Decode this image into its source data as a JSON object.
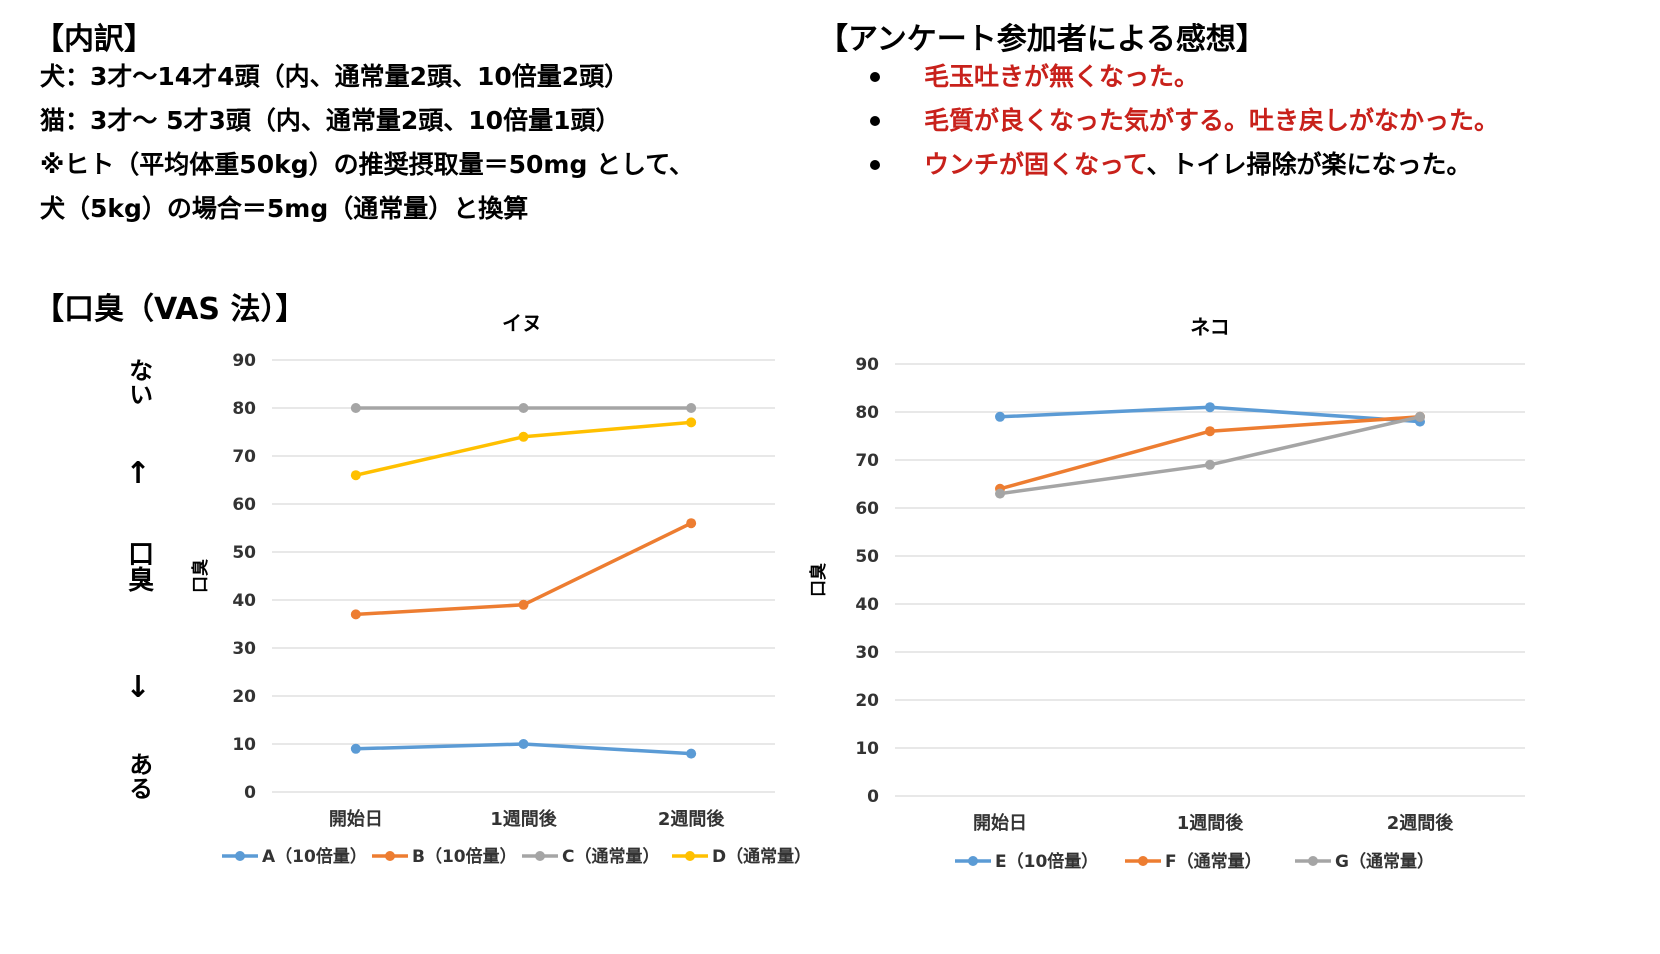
{
  "breakdown": {
    "heading": "【内訳】",
    "lines": [
      "犬：3才～14才4頭（内、通常量2頭、10倍量2頭）",
      "猫：3才～ 5才3頭（内、通常量2頭、10倍量1頭）",
      "※ヒト（平均体重50kg）の推奨摂取量＝50mg として、",
      "犬（5kg）の場合＝5mg（通常量）と換算"
    ]
  },
  "survey": {
    "heading": "【アンケート参加者による感想】",
    "items": [
      {
        "red": "毛玉吐きが無くなった。",
        "rest": ""
      },
      {
        "red": "毛質が良くなった気がする。吐き戻しがなかった。",
        "rest": ""
      },
      {
        "red": "ウンチが固くなって",
        "rest": "、トイレ掃除が楽になった。"
      }
    ]
  },
  "section": {
    "heading": "【口臭（VAS 法）】",
    "side_top": "ない",
    "arrow_up": "↑",
    "side_middle": "口臭",
    "arrow_down": "↓",
    "side_bottom": "ある"
  },
  "colors": {
    "blue": "#5b9bd5",
    "orange": "#ed7d31",
    "gray": "#a5a5a5",
    "yellow": "#ffc000",
    "grid": "#d9d9d9",
    "red_text": "#c8211b"
  },
  "chart_data": [
    {
      "type": "line",
      "title": "イヌ",
      "ylabel": "口臭",
      "xlabel": "",
      "categories": [
        "開始日",
        "1週間後",
        "2週間後"
      ],
      "ylim": [
        0,
        90
      ],
      "yticks": [
        0,
        10,
        20,
        30,
        40,
        50,
        60,
        70,
        80,
        90
      ],
      "grid": true,
      "legend_position": "bottom",
      "series": [
        {
          "name": "A（10倍量）",
          "values": [
            9,
            10,
            8
          ],
          "color": "#5b9bd5"
        },
        {
          "name": "B（10倍量）",
          "values": [
            37,
            39,
            56
          ],
          "color": "#ed7d31"
        },
        {
          "name": "C（通常量）",
          "values": [
            80,
            80,
            80
          ],
          "color": "#a5a5a5"
        },
        {
          "name": "D（通常量）",
          "values": [
            66,
            74,
            77
          ],
          "color": "#ffc000"
        }
      ]
    },
    {
      "type": "line",
      "title": "ネコ",
      "ylabel": "口臭",
      "xlabel": "",
      "categories": [
        "開始日",
        "1週間後",
        "2週間後"
      ],
      "ylim": [
        0,
        90
      ],
      "yticks": [
        0,
        10,
        20,
        30,
        40,
        50,
        60,
        70,
        80,
        90
      ],
      "grid": true,
      "legend_position": "bottom",
      "series": [
        {
          "name": "E（10倍量）",
          "values": [
            79,
            81,
            78
          ],
          "color": "#5b9bd5"
        },
        {
          "name": "F（通常量）",
          "values": [
            64,
            76,
            79
          ],
          "color": "#ed7d31"
        },
        {
          "name": "G（通常量）",
          "values": [
            63,
            69,
            79
          ],
          "color": "#a5a5a5"
        }
      ]
    }
  ]
}
